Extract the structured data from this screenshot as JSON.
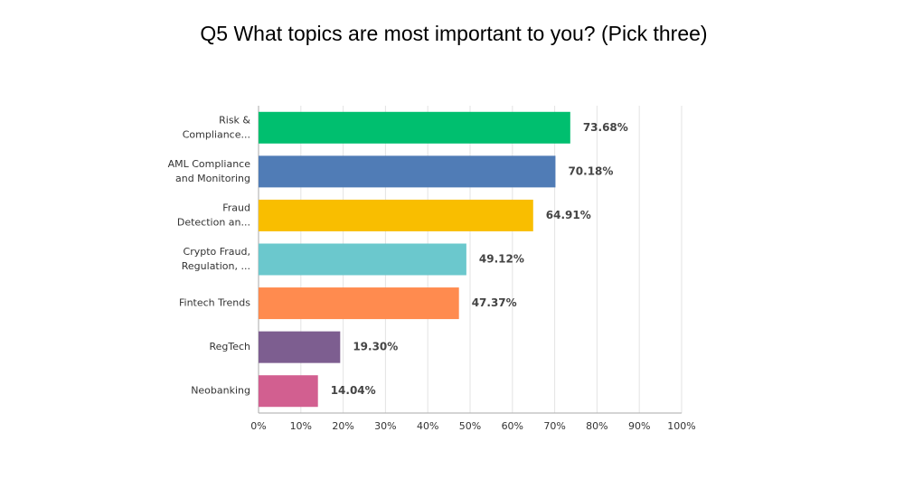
{
  "chart_data": {
    "type": "bar",
    "orientation": "horizontal",
    "title": "Q5 What topics are most important to you? (Pick three)",
    "categories": [
      "Risk &\nCompliance...",
      "AML Compliance\nand Monitoring",
      "Fraud\nDetection an...",
      "Crypto Fraud,\nRegulation, ...",
      "Fintech Trends",
      "RegTech",
      "Neobanking"
    ],
    "values": [
      73.68,
      70.18,
      64.91,
      49.12,
      47.37,
      19.3,
      14.04
    ],
    "value_labels": [
      "73.68%",
      "70.18%",
      "64.91%",
      "49.12%",
      "47.37%",
      "19.30%",
      "14.04%"
    ],
    "colors": [
      "#00bf6f",
      "#507cb6",
      "#f9be00",
      "#6bc8cd",
      "#ff8b4f",
      "#7d5e90",
      "#d25f90"
    ],
    "xlim": [
      0,
      100
    ],
    "xticks": [
      {
        "value": 0,
        "label": "0%"
      },
      {
        "value": 10,
        "label": "10%"
      },
      {
        "value": 20,
        "label": "20%"
      },
      {
        "value": 30,
        "label": "30%"
      },
      {
        "value": 40,
        "label": "40%"
      },
      {
        "value": 50,
        "label": "50%"
      },
      {
        "value": 60,
        "label": "60%"
      },
      {
        "value": 70,
        "label": "70%"
      },
      {
        "value": 80,
        "label": "80%"
      },
      {
        "value": 90,
        "label": "90%"
      },
      {
        "value": 100,
        "label": "100%"
      }
    ],
    "grid": true
  }
}
